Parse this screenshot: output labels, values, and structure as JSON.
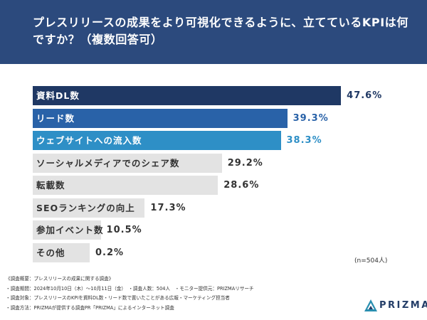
{
  "title": "プレスリリースの成果をより可視化できるように、立てているKPIは何ですか？（複数回答可）",
  "sample_size": "(n=504人)",
  "footer": [
    "《調査概要：プレスリリースの成果に関する調査》",
    "・調査期間：2024年10月10日（木）〜10月11日（金）　・調査人数：504人　・モニター提供元：PRIZMAリサーチ",
    "・調査対象：プレスリリースのKPIを資料DL数・リード数で置いたことがある広報・マーケティング担当者",
    "・調査方法：PRIZMAが提供する調査PR「PRIZMA」によるインターネット調査"
  ],
  "logo": "PRIZMA",
  "colors": {
    "header_bg": "#2c4a7d",
    "bar_1": "#1f3864",
    "bar_2": "#2962a8",
    "bar_3": "#2e8fc6",
    "bar_other": "#e3e3e3",
    "value_1": "#1f3864",
    "value_2": "#2962a8",
    "value_3": "#2e8fc6",
    "value_other": "#333333"
  },
  "chart_data": {
    "type": "bar",
    "orientation": "horizontal",
    "categories": [
      "資料DL数",
      "リード数",
      "ウェブサイトへの流入数",
      "ソーシャルメディアでのシェア数",
      "転載数",
      "SEOランキングの向上",
      "参加イベント数",
      "その他"
    ],
    "values": [
      47.6,
      39.3,
      38.3,
      29.2,
      28.6,
      17.3,
      10.5,
      0.2
    ],
    "value_labels": [
      "47.6%",
      "39.3%",
      "38.3%",
      "29.2%",
      "28.6%",
      "17.3%",
      "10.5%",
      "0.2%"
    ],
    "unit": "%",
    "xlim": [
      0,
      100
    ],
    "grid": false,
    "legend": false
  }
}
